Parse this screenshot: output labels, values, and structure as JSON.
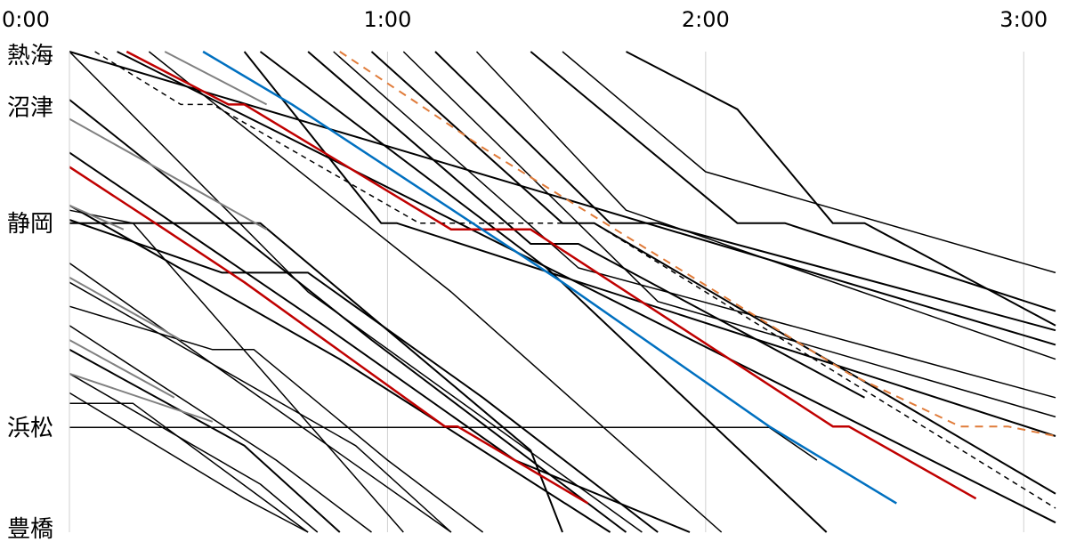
{
  "chart_data": {
    "type": "line",
    "title": "",
    "xlabel": "",
    "ylabel": "",
    "x_unit": "hours after 0:00",
    "xlim": [
      0,
      3.1
    ],
    "x_ticks": [
      {
        "value": 0,
        "label": "0:00"
      },
      {
        "value": 1,
        "label": "1:00"
      },
      {
        "value": 2,
        "label": "2:00"
      },
      {
        "value": 3,
        "label": "3:00"
      }
    ],
    "y_categories": [
      {
        "name": "熱海",
        "pos": 0
      },
      {
        "name": "沼津",
        "pos": 0.116
      },
      {
        "name": "静岡",
        "pos": 0.357
      },
      {
        "name": "浜松",
        "pos": 0.782
      },
      {
        "name": "豊橋",
        "pos": 1.0
      }
    ],
    "grid": {
      "vertical": true,
      "horizontal": false
    },
    "series": [
      {
        "color": "#000000",
        "width": 2,
        "points": [
          [
            0.0,
            0.0
          ],
          [
            3.1,
            0.61
          ]
        ]
      },
      {
        "color": "#000000",
        "width": 2,
        "points": [
          [
            0.15,
            0.0
          ],
          [
            3.1,
            0.98
          ]
        ]
      },
      {
        "color": "#000000",
        "width": 2,
        "points": [
          [
            0.55,
            0.0
          ],
          [
            0.98,
            0.357
          ],
          [
            1.03,
            0.357
          ],
          [
            3.1,
            0.8
          ]
        ]
      },
      {
        "color": "#000000",
        "width": 2,
        "points": [
          [
            0.75,
            0.0
          ],
          [
            1.45,
            0.4
          ],
          [
            1.6,
            0.4
          ],
          [
            2.5,
            0.72
          ]
        ]
      },
      {
        "color": "#000000",
        "width": 1.5,
        "points": [
          [
            0.83,
            0.0
          ],
          [
            1.6,
            0.45
          ],
          [
            3.1,
            0.72
          ]
        ]
      },
      {
        "color": "#000000",
        "width": 2,
        "points": [
          [
            0.95,
            0.0
          ],
          [
            1.55,
            0.357
          ],
          [
            1.65,
            0.357
          ],
          [
            3.1,
            0.92
          ]
        ]
      },
      {
        "color": "#000000",
        "width": 1.5,
        "points": [
          [
            1.05,
            0.0
          ],
          [
            1.85,
            0.52
          ],
          [
            3.1,
            0.76
          ]
        ]
      },
      {
        "color": "#000000",
        "width": 2,
        "points": [
          [
            1.15,
            0.0
          ],
          [
            1.7,
            0.357
          ],
          [
            1.85,
            0.357
          ],
          [
            3.1,
            0.58
          ]
        ]
      },
      {
        "color": "#000000",
        "width": 1.5,
        "points": [
          [
            1.28,
            0.0
          ],
          [
            1.75,
            0.33
          ],
          [
            3.1,
            0.64
          ]
        ]
      },
      {
        "color": "#000000",
        "width": 2,
        "points": [
          [
            1.45,
            0.0
          ],
          [
            2.1,
            0.357
          ],
          [
            2.25,
            0.357
          ],
          [
            3.1,
            0.54
          ]
        ]
      },
      {
        "color": "#000000",
        "width": 1.5,
        "points": [
          [
            1.55,
            0.0
          ],
          [
            2.0,
            0.25
          ],
          [
            3.1,
            0.46
          ]
        ]
      },
      {
        "color": "#000000",
        "width": 2,
        "points": [
          [
            1.75,
            0.0
          ],
          [
            2.1,
            0.12
          ],
          [
            2.4,
            0.357
          ],
          [
            2.5,
            0.357
          ],
          [
            3.1,
            0.57
          ]
        ]
      },
      {
        "color": "#000000",
        "width": 1.5,
        "points": [
          [
            0.0,
            0.0
          ],
          [
            0.75,
            0.5
          ],
          [
            1.8,
            1.0
          ]
        ]
      },
      {
        "color": "#000000",
        "width": 2,
        "points": [
          [
            0.0,
            0.1
          ],
          [
            0.95,
            0.6
          ],
          [
            1.75,
            1.0
          ]
        ]
      },
      {
        "color": "#000000",
        "width": 1.5,
        "points": [
          [
            0.25,
            0.0
          ],
          [
            1.2,
            0.5
          ],
          [
            2.05,
            1.0
          ]
        ]
      },
      {
        "color": "#000000",
        "width": 2,
        "points": [
          [
            0.0,
            0.21
          ],
          [
            0.8,
            0.57
          ],
          [
            1.4,
            0.85
          ],
          [
            1.95,
            1.0
          ]
        ]
      },
      {
        "color": "#000000",
        "width": 2,
        "points": [
          [
            0.6,
            0.0
          ],
          [
            1.5,
            0.45
          ],
          [
            2.38,
            1.0
          ]
        ]
      },
      {
        "color": "#000000",
        "width": 2,
        "points": [
          [
            0.0,
            0.32
          ],
          [
            0.85,
            0.64
          ],
          [
            1.7,
            1.0
          ]
        ]
      },
      {
        "color": "#000000",
        "width": 1.5,
        "points": [
          [
            0.0,
            0.33
          ],
          [
            0.2,
            0.357
          ],
          [
            1.05,
            1.0
          ]
        ]
      },
      {
        "color": "#000000",
        "width": 2,
        "points": [
          [
            0.0,
            0.357
          ],
          [
            0.6,
            0.357
          ],
          [
            1.45,
            0.83
          ],
          [
            1.55,
            1.0
          ]
        ]
      },
      {
        "color": "#000000",
        "width": 2,
        "points": [
          [
            0.0,
            0.35
          ],
          [
            0.48,
            0.46
          ],
          [
            0.75,
            0.46
          ],
          [
            1.3,
            0.72
          ],
          [
            1.85,
            1.0
          ]
        ]
      },
      {
        "color": "#000000",
        "width": 1.5,
        "points": [
          [
            0.0,
            0.44
          ],
          [
            1.2,
            1.0
          ]
        ]
      },
      {
        "color": "#000000",
        "width": 1.5,
        "points": [
          [
            0.0,
            0.48
          ],
          [
            0.9,
            0.82
          ],
          [
            1.2,
            1.0
          ]
        ]
      },
      {
        "color": "#000000",
        "width": 1.5,
        "points": [
          [
            0.0,
            0.53
          ],
          [
            0.45,
            0.62
          ],
          [
            0.58,
            0.62
          ],
          [
            1.0,
            0.85
          ],
          [
            1.3,
            1.0
          ]
        ]
      },
      {
        "color": "#000000",
        "width": 1.5,
        "points": [
          [
            0.0,
            0.57
          ],
          [
            0.65,
            0.85
          ],
          [
            0.95,
            1.0
          ]
        ]
      },
      {
        "color": "#000000",
        "width": 2,
        "points": [
          [
            0.0,
            0.62
          ],
          [
            0.55,
            0.82
          ],
          [
            0.85,
            1.0
          ]
        ]
      },
      {
        "color": "#000000",
        "width": 1.5,
        "points": [
          [
            0.0,
            0.67
          ],
          [
            0.6,
            0.9
          ],
          [
            0.78,
            1.0
          ]
        ]
      },
      {
        "color": "#000000",
        "width": 1.5,
        "points": [
          [
            0.0,
            0.71
          ],
          [
            0.55,
            0.93
          ],
          [
            0.75,
            1.0
          ]
        ]
      },
      {
        "color": "#000000",
        "width": 1.5,
        "points": [
          [
            0.0,
            0.732
          ],
          [
            0.2,
            0.732
          ],
          [
            0.75,
            1.0
          ]
        ]
      },
      {
        "color": "#000000",
        "width": 1.5,
        "points": [
          [
            0.0,
            0.782
          ],
          [
            2.2,
            0.782
          ],
          [
            2.35,
            0.85
          ]
        ]
      },
      {
        "color": "#000000",
        "width": 1.5,
        "dash": "6,5",
        "points": [
          [
            0.08,
            0.0
          ],
          [
            0.35,
            0.11
          ],
          [
            0.45,
            0.11
          ],
          [
            1.1,
            0.357
          ],
          [
            1.65,
            0.357
          ],
          [
            3.1,
            0.95
          ]
        ]
      },
      {
        "color": "#e07b39",
        "width": 2,
        "dash": "9,7",
        "points": [
          [
            0.85,
            0.0
          ],
          [
            1.1,
            0.11
          ],
          [
            1.3,
            0.2
          ],
          [
            2.45,
            0.67
          ],
          [
            2.8,
            0.78
          ],
          [
            2.95,
            0.78
          ],
          [
            3.1,
            0.8
          ]
        ]
      },
      {
        "color": "#c00000",
        "width": 2.5,
        "points": [
          [
            0.18,
            0.0
          ],
          [
            0.5,
            0.11
          ],
          [
            0.55,
            0.11
          ],
          [
            1.2,
            0.37
          ],
          [
            1.45,
            0.37
          ],
          [
            2.4,
            0.78
          ],
          [
            2.45,
            0.78
          ],
          [
            2.85,
            0.93
          ]
        ]
      },
      {
        "color": "#c00000",
        "width": 2.5,
        "points": [
          [
            0.0,
            0.24
          ],
          [
            0.3,
            0.37
          ],
          [
            0.55,
            0.48
          ],
          [
            1.18,
            0.78
          ],
          [
            1.22,
            0.78
          ],
          [
            1.63,
            0.94
          ]
        ]
      },
      {
        "color": "#0070c0",
        "width": 2.5,
        "points": [
          [
            0.42,
            0.0
          ],
          [
            0.7,
            0.11
          ],
          [
            1.55,
            0.48
          ],
          [
            2.2,
            0.78
          ],
          [
            2.6,
            0.94
          ]
        ]
      },
      {
        "color": "#808080",
        "width": 2,
        "points": [
          [
            0.3,
            0.0
          ],
          [
            0.62,
            0.11
          ]
        ]
      },
      {
        "color": "#808080",
        "width": 2,
        "points": [
          [
            0.0,
            0.14
          ],
          [
            0.62,
            0.37
          ]
        ]
      },
      {
        "color": "#808080",
        "width": 2,
        "points": [
          [
            0.0,
            0.32
          ],
          [
            0.17,
            0.37
          ]
        ]
      },
      {
        "color": "#808080",
        "width": 2,
        "points": [
          [
            0.0,
            0.47
          ],
          [
            0.35,
            0.6
          ]
        ]
      },
      {
        "color": "#808080",
        "width": 2,
        "points": [
          [
            0.0,
            0.6
          ],
          [
            0.33,
            0.72
          ]
        ]
      },
      {
        "color": "#808080",
        "width": 2,
        "points": [
          [
            0.0,
            0.67
          ],
          [
            0.45,
            0.77
          ]
        ]
      }
    ]
  }
}
